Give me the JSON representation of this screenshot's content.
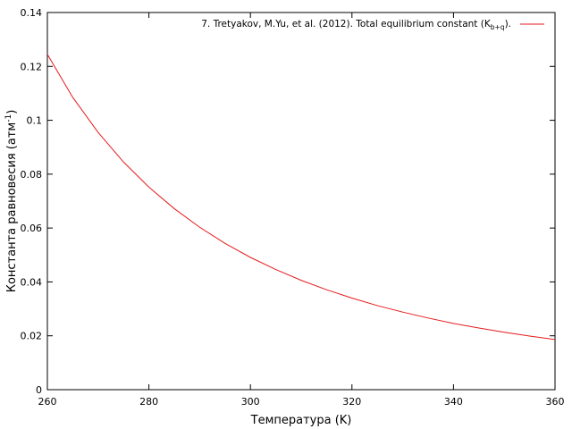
{
  "chart_data": {
    "type": "line",
    "title": "",
    "xlabel": "Температура (K)",
    "ylabel": {
      "text": "Константа равновесия (атм",
      "superscript": "-1",
      "suffix": ")"
    },
    "xlim": [
      260,
      360
    ],
    "ylim": [
      0,
      0.14
    ],
    "x_ticks": [
      "260",
      "280",
      "300",
      "320",
      "340",
      "360"
    ],
    "y_ticks": [
      "0",
      "0.02",
      "0.04",
      "0.06",
      "0.08",
      "0.1",
      "0.12",
      "0.14"
    ],
    "grid": false,
    "legend_position": "top-right",
    "series": [
      {
        "name": {
          "text": "7. Tretyakov, M.Yu, et al. (2012). Total equilibrium constant (K",
          "subscript": "b+q",
          "suffix": ")."
        },
        "color": "#e41a1c",
        "x": [
          260,
          265,
          270,
          275,
          280,
          285,
          290,
          295,
          300,
          305,
          310,
          315,
          320,
          325,
          330,
          335,
          340,
          345,
          350,
          355,
          360
        ],
        "y": [
          0.1245,
          0.1085,
          0.0955,
          0.0845,
          0.0752,
          0.0672,
          0.0603,
          0.0543,
          0.0491,
          0.0446,
          0.0406,
          0.0371,
          0.034,
          0.0312,
          0.0288,
          0.0266,
          0.0246,
          0.0229,
          0.0213,
          0.0199,
          0.0186
        ]
      }
    ]
  }
}
